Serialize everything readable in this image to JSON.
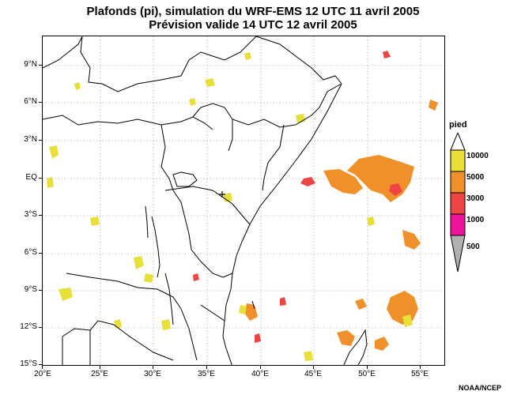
{
  "title_line1": "Plafonds (pi), simulation du WRF-EMS 12 UTC 11 avril 2005",
  "title_line2": "Prévision valide 14 UTC 12 avril 2005",
  "lat_labels": [
    "9°N",
    "6°N",
    "3°N",
    "EQ",
    "3°S",
    "6°S",
    "9°S",
    "12°S",
    "15°S"
  ],
  "lon_labels": [
    "20°E",
    "25°E",
    "30°E",
    "35°E",
    "40°E",
    "45°E",
    "50°E",
    "55°E"
  ],
  "legend": {
    "title": "pied",
    "levels": [
      {
        "label": "10000",
        "color": "#e8e038"
      },
      {
        "label": "5000",
        "color": "#f0902a"
      },
      {
        "label": "3000",
        "color": "#ee4444"
      },
      {
        "label": "1000",
        "color": "#ee1199"
      },
      {
        "label": "500",
        "color": "#b0b0b0"
      }
    ]
  },
  "colors": {
    "yellow": "#e8e038",
    "orange": "#f0902a",
    "red": "#ee4444",
    "magenta": "#ee1199"
  },
  "credit": "NOAA/NCEP"
}
